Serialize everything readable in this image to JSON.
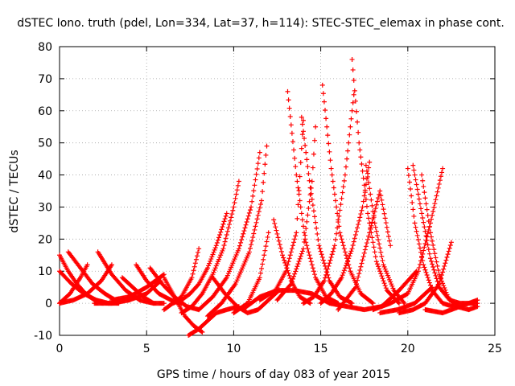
{
  "chart_data": {
    "type": "scatter",
    "title": "dSTEC Iono. truth (pdel, Lon=334, Lat=37, h=114): STEC-STEC_elemax in phase cont.",
    "xlabel": "GPS time / hours of day 083 of year 2015",
    "ylabel": "dSTEC  / TECUs",
    "xlim": [
      0,
      25
    ],
    "ylim": [
      -10,
      80
    ],
    "xticks": [
      0,
      5,
      10,
      15,
      20,
      25
    ],
    "yticks": [
      -10,
      0,
      10,
      20,
      30,
      40,
      50,
      60,
      70,
      80
    ],
    "xtick_labels": [
      "0",
      "5",
      "10",
      "15",
      "20",
      "25"
    ],
    "ytick_labels": [
      "-10",
      "0",
      "10",
      "20",
      "30",
      "40",
      "50",
      "60",
      "70",
      "80"
    ],
    "grid": true,
    "grid_style": "dotted",
    "marker": "+",
    "marker_color": "#ff0000",
    "series": [
      {
        "x": [
          0.0,
          0.5,
          1.0,
          1.5,
          2.0,
          2.5
        ],
        "y": [
          15,
          10,
          6,
          3,
          1,
          0
        ]
      },
      {
        "x": [
          0.0,
          0.7,
          1.4,
          2.1,
          2.8,
          3.4
        ],
        "y": [
          10,
          6,
          3,
          1,
          0,
          0
        ]
      },
      {
        "x": [
          0.0,
          0.8,
          1.6,
          2.4,
          3.0
        ],
        "y": [
          0,
          1,
          3,
          7,
          12
        ]
      },
      {
        "x": [
          0.5,
          1.2,
          1.9,
          2.6,
          3.2
        ],
        "y": [
          16,
          11,
          6,
          3,
          1
        ]
      },
      {
        "x": [
          0.0,
          0.6,
          1.2,
          1.6
        ],
        "y": [
          0,
          3,
          8,
          12
        ]
      },
      {
        "x": [
          2.2,
          3.0,
          3.8,
          4.6,
          5.4
        ],
        "y": [
          16,
          9,
          4,
          1,
          0
        ]
      },
      {
        "x": [
          2.0,
          3.0,
          4.0,
          5.0,
          5.8
        ],
        "y": [
          0,
          0,
          1,
          3,
          7
        ]
      },
      {
        "x": [
          3.6,
          4.2,
          4.8,
          5.4,
          6.0
        ],
        "y": [
          8,
          5,
          2,
          0,
          0
        ]
      },
      {
        "x": [
          4.4,
          5.0,
          5.7,
          6.4,
          7.0
        ],
        "y": [
          12,
          7,
          3,
          1,
          0
        ]
      },
      {
        "x": [
          5.2,
          5.9,
          6.6,
          7.3,
          8.0
        ],
        "y": [
          11,
          6,
          2,
          -1,
          -2
        ]
      },
      {
        "x": [
          3.0,
          4.0,
          5.0,
          6.0
        ],
        "y": [
          1,
          2,
          5,
          9
        ]
      },
      {
        "x": [
          6.0,
          6.6,
          7.2,
          7.7,
          8.2
        ],
        "y": [
          8,
          2,
          -4,
          -7,
          -9
        ]
      },
      {
        "x": [
          7.4,
          8.0,
          8.6,
          9.0,
          9.6,
          10.3
        ],
        "y": [
          -10,
          -8,
          -5,
          -3,
          -2,
          -1
        ]
      },
      {
        "x": [
          6.5,
          7.0,
          7.5,
          8.0,
          8.5,
          9.0,
          9.6
        ],
        "y": [
          0,
          1,
          3,
          6,
          11,
          18,
          28
        ]
      },
      {
        "x": [
          7.0,
          7.6,
          8.2,
          8.8,
          9.4,
          10.0,
          10.3
        ],
        "y": [
          -3,
          -1,
          3,
          9,
          17,
          30,
          38
        ]
      },
      {
        "x": [
          8.0,
          8.8,
          9.6,
          10.3,
          11.0,
          11.5
        ],
        "y": [
          -2,
          2,
          8,
          17,
          30,
          47
        ]
      },
      {
        "x": [
          8.5,
          9.3,
          10.1,
          10.9,
          11.6,
          11.9
        ],
        "y": [
          -4,
          0,
          6,
          16,
          32,
          49
        ]
      },
      {
        "x": [
          6.0,
          7.0,
          7.6,
          8.0
        ],
        "y": [
          -2,
          2,
          8,
          17
        ]
      },
      {
        "x": [
          8.8,
          9.5,
          10.2,
          10.8,
          11.4,
          12.0,
          12.6
        ],
        "y": [
          8,
          3,
          -1,
          -3,
          -2,
          1,
          4
        ]
      },
      {
        "x": [
          10.0,
          10.8,
          11.5,
          12.0
        ],
        "y": [
          -3,
          0,
          8,
          22
        ]
      },
      {
        "x": [
          12.3,
          12.8,
          13.3,
          13.8,
          14.4
        ],
        "y": [
          26,
          15,
          7,
          2,
          0
        ]
      },
      {
        "x": [
          13.1,
          13.6,
          14.1,
          14.7,
          15.3,
          16.0
        ],
        "y": [
          66,
          40,
          20,
          8,
          2,
          0
        ]
      },
      {
        "x": [
          11.5,
          12.4,
          13.0,
          13.6,
          14.0
        ],
        "y": [
          1,
          4,
          10,
          22,
          57
        ]
      },
      {
        "x": [
          13.9,
          14.4,
          14.9,
          15.5,
          16.1,
          16.8
        ],
        "y": [
          58,
          36,
          18,
          7,
          2,
          0
        ]
      },
      {
        "x": [
          12.5,
          13.3,
          14.0,
          14.5,
          14.7
        ],
        "y": [
          1,
          6,
          17,
          38,
          55
        ]
      },
      {
        "x": [
          15.1,
          15.6,
          16.1,
          16.7,
          17.3,
          18.0
        ],
        "y": [
          68,
          42,
          22,
          10,
          3,
          0
        ]
      },
      {
        "x": [
          14.0,
          14.6,
          15.2,
          15.8,
          16.4,
          16.9
        ],
        "y": [
          0,
          2,
          7,
          18,
          40,
          65
        ]
      },
      {
        "x": [
          16.8,
          17.2,
          17.7,
          18.2,
          18.8,
          19.5
        ],
        "y": [
          76,
          50,
          28,
          13,
          4,
          0
        ]
      },
      {
        "x": [
          15.0,
          15.6,
          16.2,
          16.8,
          17.4,
          17.8
        ],
        "y": [
          0,
          3,
          8,
          17,
          30,
          44
        ]
      },
      {
        "x": [
          17.6,
          18.1,
          18.6,
          19.2,
          19.8
        ],
        "y": [
          43,
          25,
          12,
          4,
          0
        ]
      },
      {
        "x": [
          16.0,
          17.0,
          17.8,
          18.4,
          19.0
        ],
        "y": [
          -2,
          5,
          22,
          35,
          18
        ]
      },
      {
        "x": [
          18.0,
          19.0,
          20.0,
          20.6,
          21.3,
          22.0
        ],
        "y": [
          -2,
          0,
          3,
          10,
          25,
          42
        ]
      },
      {
        "x": [
          20.0,
          20.4,
          20.9,
          21.4,
          22.0,
          22.6
        ],
        "y": [
          42,
          25,
          12,
          4,
          0,
          -1
        ]
      },
      {
        "x": [
          20.3,
          20.8,
          21.3,
          21.8,
          22.4,
          23.0,
          24.0
        ],
        "y": [
          43,
          28,
          14,
          5,
          1,
          0,
          0
        ]
      },
      {
        "x": [
          20.8,
          21.3,
          21.8,
          22.3,
          22.8,
          23.5,
          24.0
        ],
        "y": [
          40,
          22,
          9,
          2,
          -1,
          -2,
          -1
        ]
      },
      {
        "x": [
          19.5,
          20.3,
          21.0,
          21.8,
          22.5
        ],
        "y": [
          -3,
          -2,
          0,
          6,
          19
        ]
      },
      {
        "x": [
          18.4,
          19.4,
          20.4,
          21.4
        ],
        "y": [
          -3,
          -2,
          0,
          5
        ]
      },
      {
        "x": [
          21.0,
          22.0,
          23.0,
          24.0
        ],
        "y": [
          -2,
          -3,
          -1,
          1
        ]
      },
      {
        "x": [
          10.5,
          11.5,
          12.5,
          13.5,
          14.5,
          15.5,
          16.5,
          17.5,
          18.5,
          19.5,
          20.5
        ],
        "y": [
          -2,
          2,
          4,
          4,
          3,
          0,
          -1,
          -2,
          -1,
          4,
          10
        ]
      }
    ]
  }
}
